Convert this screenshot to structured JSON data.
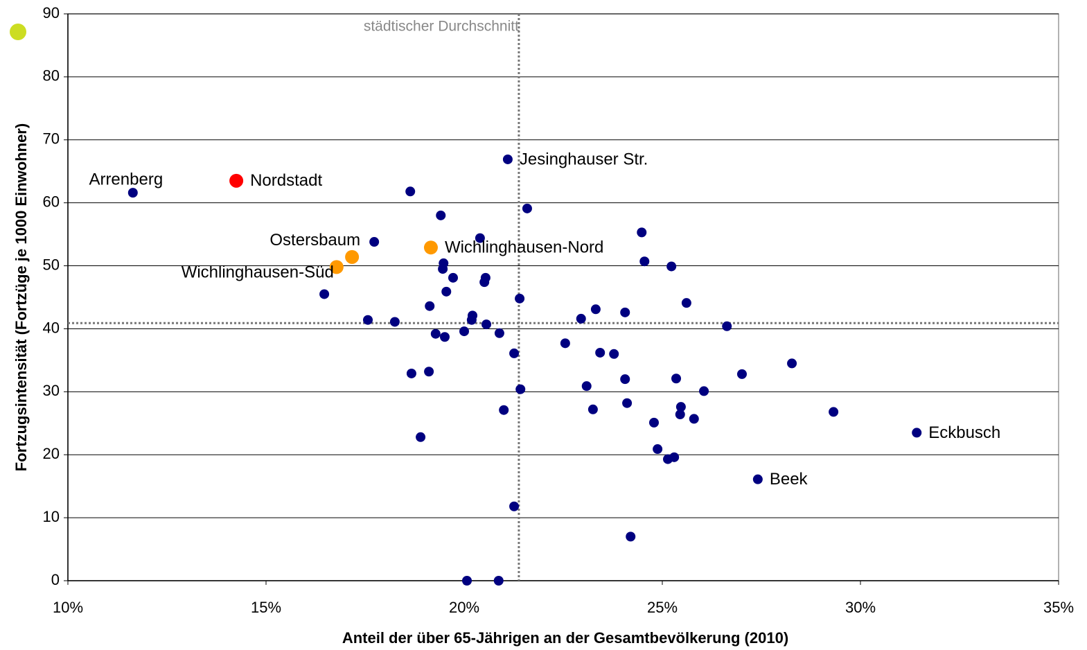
{
  "chart_data": {
    "type": "scatter",
    "xlabel": "Anteil der über 65-Jährigen an der Gesamtbevölkerung (2010)",
    "ylabel": "Fortzugsintensität (Fortzüge je 1000 Einwohner)",
    "xlim": [
      10,
      35
    ],
    "xticks": [
      {
        "value": 10,
        "label": "10%"
      },
      {
        "value": 15,
        "label": "15%"
      },
      {
        "value": 20,
        "label": "20%"
      },
      {
        "value": 25,
        "label": "25%"
      },
      {
        "value": 30,
        "label": "30%"
      },
      {
        "value": 35,
        "label": "35%"
      }
    ],
    "ylim": [
      0,
      90
    ],
    "yticks": [
      0,
      10,
      20,
      30,
      40,
      50,
      60,
      70,
      80,
      90
    ],
    "grid": true,
    "reference_lines": {
      "x": 21.38,
      "y": 40.9,
      "label": "städtischer Durchschnitt"
    },
    "series": [
      {
        "color": "#000080",
        "x": [
          11.64,
          21.1,
          31.42,
          27.41,
          18.64,
          19.41,
          21.59,
          17.73,
          20.4,
          24.48,
          24.55,
          25.23,
          19.48,
          19.46,
          19.72,
          20.54,
          20.51,
          19.55,
          16.47,
          21.4,
          25.61,
          19.13,
          23.32,
          24.06,
          20.21,
          20.19,
          22.95,
          17.57,
          18.25,
          20.56,
          26.63,
          20.0,
          19.28,
          19.51,
          20.89,
          22.55,
          21.26,
          23.43,
          23.78,
          28.27,
          18.67,
          19.11,
          27.01,
          25.35,
          24.06,
          23.09,
          21.42,
          26.05,
          24.11,
          25.47,
          23.25,
          21.0,
          29.32,
          25.45,
          25.8,
          24.79,
          18.9,
          24.88,
          25.14,
          25.3,
          21.26,
          24.2,
          20.07,
          20.87
        ],
        "y": [
          61.6,
          66.9,
          23.5,
          16.1,
          61.8,
          58.0,
          59.1,
          53.8,
          54.4,
          55.3,
          50.7,
          49.9,
          50.4,
          49.5,
          48.1,
          48.1,
          47.4,
          45.9,
          45.5,
          44.8,
          44.1,
          43.6,
          43.1,
          42.6,
          42.1,
          41.4,
          41.6,
          41.4,
          41.1,
          40.7,
          40.4,
          39.6,
          39.2,
          38.7,
          39.3,
          37.7,
          36.1,
          36.2,
          36.0,
          34.5,
          32.9,
          33.2,
          32.8,
          32.1,
          32.0,
          30.9,
          30.4,
          30.1,
          28.2,
          27.6,
          27.2,
          27.1,
          26.8,
          26.4,
          25.7,
          25.1,
          22.8,
          20.9,
          19.3,
          19.6,
          11.8,
          7.0,
          0,
          0
        ],
        "labels": [
          "Arrenberg",
          "Jesinghauser Str.",
          "Eckbusch",
          "Beek",
          null,
          null,
          null,
          null,
          null,
          null,
          null,
          null,
          null,
          null,
          null,
          null,
          null,
          null,
          null,
          null,
          null,
          null,
          null,
          null,
          null,
          null,
          null,
          null,
          null,
          null,
          null,
          null,
          null,
          null,
          null,
          null,
          null,
          null,
          null,
          null,
          null,
          null,
          null,
          null,
          null,
          null,
          null,
          null,
          null,
          null,
          null,
          null,
          null,
          null,
          null,
          null,
          null,
          null,
          null,
          null,
          null,
          null,
          null,
          null
        ]
      },
      {
        "color": "#ff0000",
        "x": [
          14.25
        ],
        "y": [
          63.5
        ],
        "labels": [
          "Nordstadt"
        ]
      },
      {
        "color": "#ff9900",
        "x": [
          17.17,
          16.78,
          19.16
        ],
        "y": [
          51.4,
          49.8,
          52.9
        ],
        "labels": [
          "Ostersbaum",
          "Wichlinghausen-Süd",
          "Wichlinghausen-Nord"
        ]
      }
    ]
  }
}
